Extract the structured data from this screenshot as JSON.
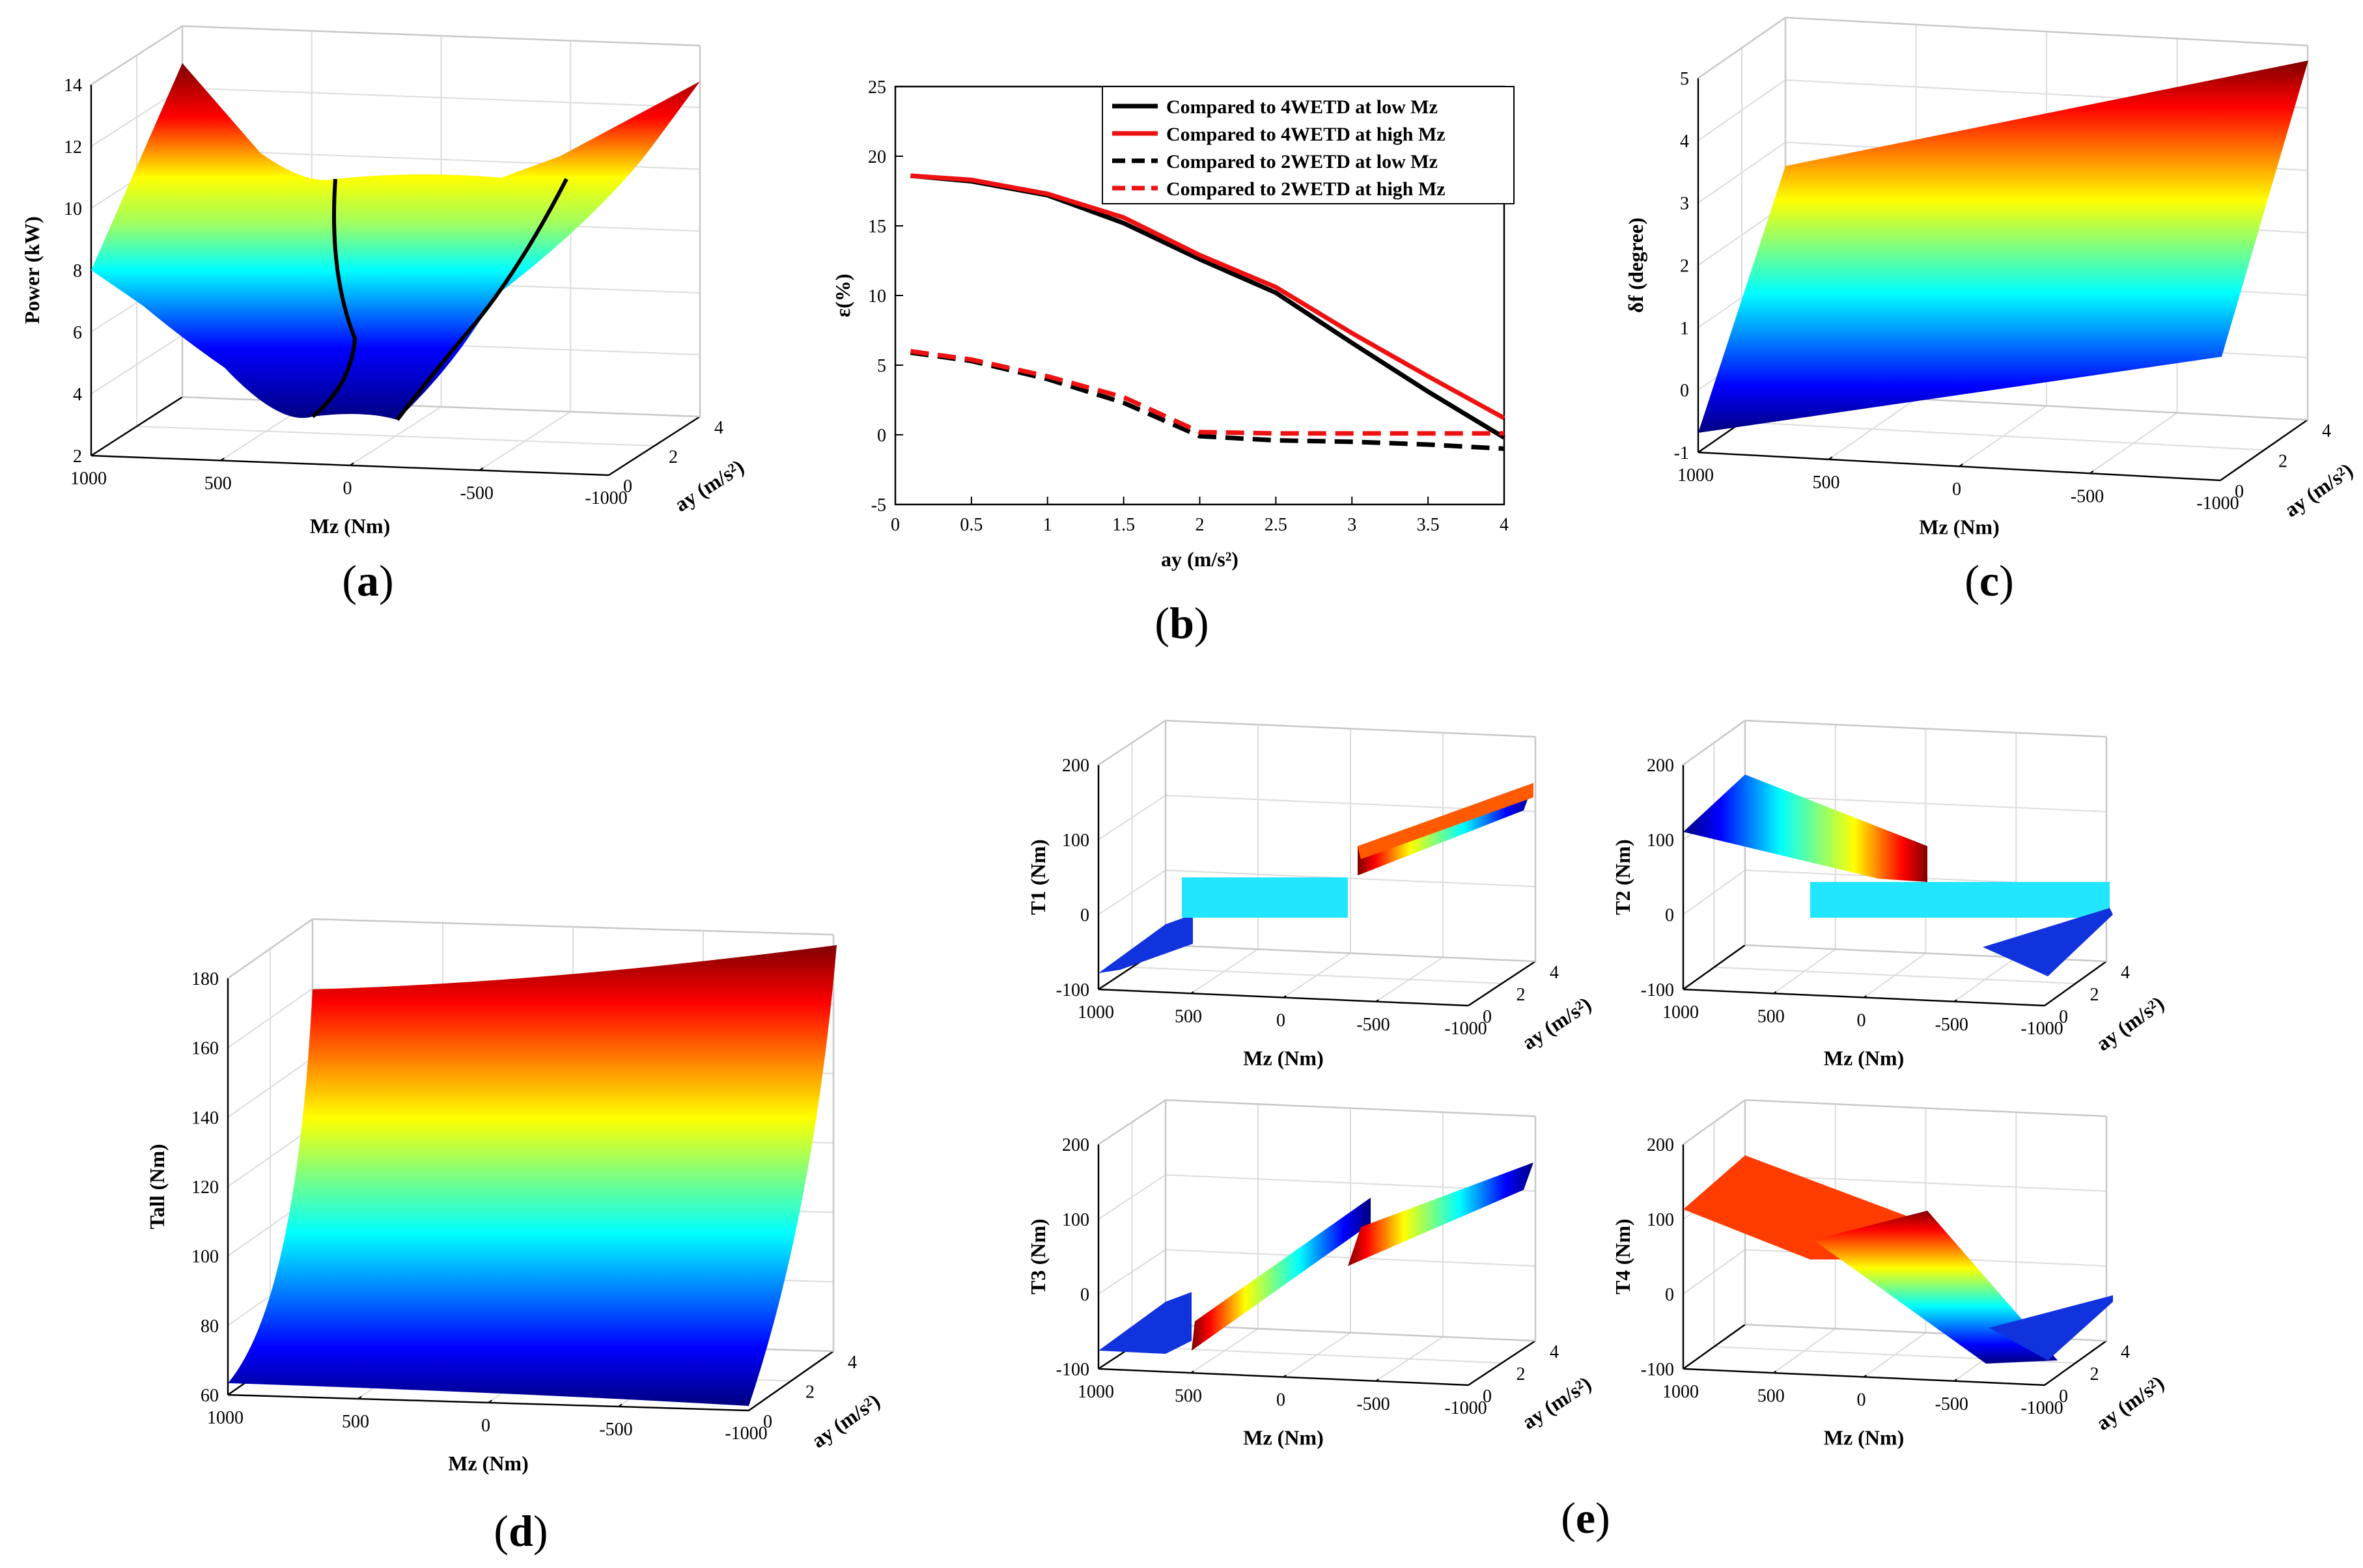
{
  "panel_labels": {
    "a": "a",
    "b": "b",
    "c": "c",
    "d": "d",
    "e": "e"
  },
  "chart_data": [
    {
      "id": "a",
      "type": "surface3d",
      "zlabel": "Power (kW)",
      "xlabel": "Mz (Nm)",
      "ylabel": "ay (m/s²)",
      "zticks": [
        2,
        4,
        6,
        8,
        10,
        12,
        14
      ],
      "xticks": [
        1000,
        500,
        0,
        -500,
        -1000
      ],
      "yticks": [
        0,
        2,
        4
      ],
      "zlim": [
        2,
        14
      ],
      "corner_values": {
        "mz_1000_ay_0": 8.0,
        "mz_1000_ay_4": 14.3,
        "mz_-1000_ay_0": 8.0,
        "mz_-1000_ay_4": 13.9
      },
      "valley_min": 3.2,
      "ridge_top": 11.0,
      "overlay_curves": 2
    },
    {
      "id": "b",
      "type": "line",
      "xlabel": "ay (m/s²)",
      "ylabel": "ε(%)",
      "xlim": [
        0,
        4
      ],
      "ylim": [
        -5,
        25
      ],
      "xticks": [
        0,
        0.5,
        1,
        1.5,
        2,
        2.5,
        3,
        3.5,
        4
      ],
      "yticks": [
        -5,
        0,
        5,
        10,
        15,
        20,
        25
      ],
      "x": [
        0.1,
        0.5,
        1.0,
        1.5,
        2.0,
        2.5,
        3.0,
        3.5,
        4.0
      ],
      "series": [
        {
          "name": "Compared to 4WETD at low Mz",
          "color": "#000000",
          "dash": false,
          "values": [
            18.6,
            18.2,
            17.2,
            15.2,
            12.6,
            10.2,
            6.6,
            3.1,
            -0.2
          ]
        },
        {
          "name": "Compared to 4WETD at high Mz",
          "color": "#ee1111",
          "dash": false,
          "values": [
            18.6,
            18.3,
            17.3,
            15.6,
            12.9,
            10.6,
            7.3,
            4.2,
            1.2
          ]
        },
        {
          "name": "Compared to 2WETD at low Mz",
          "color": "#000000",
          "dash": true,
          "values": [
            5.9,
            5.3,
            4.0,
            2.3,
            -0.1,
            -0.4,
            -0.5,
            -0.7,
            -1.0
          ]
        },
        {
          "name": "Compared to 2WETD at high Mz",
          "color": "#ee1111",
          "dash": true,
          "values": [
            6.0,
            5.4,
            4.2,
            2.7,
            0.2,
            0.1,
            0.1,
            0.1,
            0.1
          ]
        }
      ]
    },
    {
      "id": "c",
      "type": "surface3d",
      "zlabel": "δf (degree)",
      "xlabel": "Mz (Nm)",
      "ylabel": "ay (m/s²)",
      "zticks": [
        -1,
        0,
        1,
        2,
        3,
        4,
        5
      ],
      "xticks": [
        1000,
        500,
        0,
        -500,
        -1000
      ],
      "yticks": [
        0,
        2,
        4
      ],
      "zlim": [
        -1,
        5
      ],
      "corner_values": {
        "ay_0": -0.6,
        "ay_4": 5.3
      }
    },
    {
      "id": "d",
      "type": "surface3d",
      "zlabel": "Tall (Nm)",
      "xlabel": "Mz (Nm)",
      "ylabel": "ay (m/s²)",
      "zticks": [
        60,
        80,
        100,
        120,
        140,
        160,
        180
      ],
      "xticks": [
        1000,
        500,
        0,
        -500,
        -1000
      ],
      "yticks": [
        0,
        2,
        4
      ],
      "zlim": [
        60,
        180
      ],
      "corner_values": {
        "ay_0": 62,
        "ay_4": 186
      }
    },
    {
      "id": "e1",
      "type": "surface3d",
      "zlabel": "T1 (Nm)",
      "xlabel": "Mz (Nm)",
      "ylabel": "ay (m/s²)",
      "zticks": [
        -100,
        0,
        100,
        200
      ],
      "xticks": [
        1000,
        500,
        0,
        -500,
        -1000
      ],
      "yticks": [
        0,
        2,
        4
      ],
      "zlim": [
        -100,
        200
      ]
    },
    {
      "id": "e2",
      "type": "surface3d",
      "zlabel": "T2 (Nm)",
      "xlabel": "Mz (Nm)",
      "ylabel": "ay (m/s²)",
      "zticks": [
        -100,
        0,
        100,
        200
      ],
      "xticks": [
        1000,
        500,
        0,
        -500,
        -1000
      ],
      "yticks": [
        0,
        2,
        4
      ],
      "zlim": [
        -100,
        200
      ]
    },
    {
      "id": "e3",
      "type": "surface3d",
      "zlabel": "T3 (Nm)",
      "xlabel": "Mz (Nm)",
      "ylabel": "ay (m/s²)",
      "zticks": [
        -100,
        0,
        100,
        200
      ],
      "xticks": [
        1000,
        500,
        0,
        -500,
        -1000
      ],
      "yticks": [
        0,
        2,
        4
      ],
      "zlim": [
        -100,
        200
      ]
    },
    {
      "id": "e4",
      "type": "surface3d",
      "zlabel": "T4 (Nm)",
      "xlabel": "Mz (Nm)",
      "ylabel": "ay (m/s²)",
      "zticks": [
        -100,
        0,
        100,
        200
      ],
      "xticks": [
        1000,
        500,
        0,
        -500,
        -1000
      ],
      "yticks": [
        0,
        2,
        4
      ],
      "zlim": [
        -100,
        200
      ]
    }
  ]
}
